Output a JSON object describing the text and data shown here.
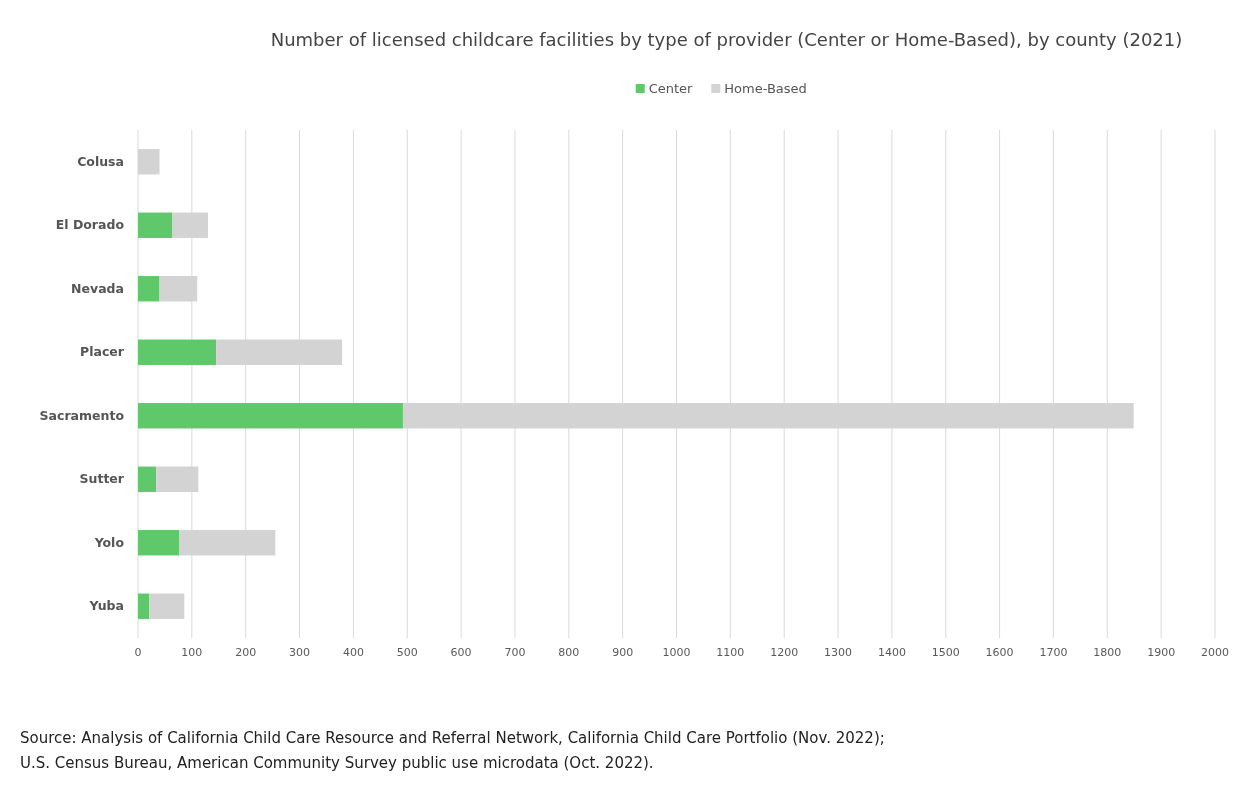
{
  "chart_data": {
    "type": "bar",
    "orientation": "horizontal",
    "stacked": true,
    "title": "Number of licensed childcare facilities by type of provider (Center or Home-Based), by county (2021)",
    "categories": [
      "Colusa",
      "El Dorado",
      "Nevada",
      "Placer",
      "Sacramento",
      "Sutter",
      "Yolo",
      "Yuba"
    ],
    "series": [
      {
        "name": "Center",
        "color": "#5fc86a",
        "values": [
          0,
          64,
          40,
          145,
          492,
          34,
          77,
          21
        ]
      },
      {
        "name": "Home-Based",
        "color": "#d3d3d3",
        "values": [
          40,
          66,
          70,
          234,
          1357,
          78,
          178,
          65
        ]
      }
    ],
    "xlim": [
      0,
      2000
    ],
    "xticks": [
      0,
      100,
      200,
      300,
      400,
      500,
      600,
      700,
      800,
      900,
      1000,
      1100,
      1200,
      1300,
      1400,
      1500,
      1600,
      1700,
      1800,
      1900,
      2000
    ],
    "grid": "x",
    "legend": "top",
    "annotations": [
      "Source: Analysis of California Child Care Resource and Referral Network, California Child Care Portfolio (Nov. 2022);",
      "U.S. Census Bureau, American Community Survey public use microdata (Oct. 2022)."
    ]
  }
}
